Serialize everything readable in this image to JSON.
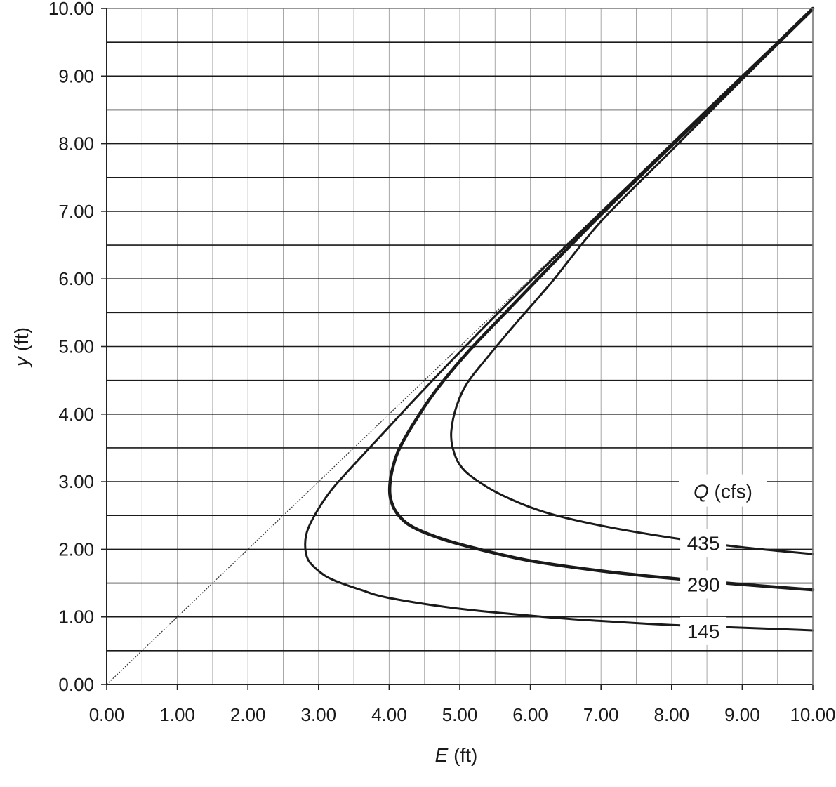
{
  "chart_data": {
    "type": "line",
    "title": "",
    "xlabel": {
      "var": "E",
      "unit": " (ft)"
    },
    "ylabel": {
      "var": "y",
      "unit": " (ft)"
    },
    "xlim": [
      0,
      10
    ],
    "ylim": [
      0,
      10
    ],
    "x_ticks": [
      "0.00",
      "1.00",
      "2.00",
      "3.00",
      "4.00",
      "5.00",
      "6.00",
      "7.00",
      "8.00",
      "9.00",
      "10.00"
    ],
    "y_ticks": [
      "0.00",
      "1.00",
      "2.00",
      "3.00",
      "4.00",
      "5.00",
      "6.00",
      "7.00",
      "8.00",
      "9.00",
      "10.00"
    ],
    "grid": true,
    "legend": {
      "var": "Q",
      "unit": " (cfs)"
    },
    "reference_line": {
      "style": "dotted",
      "points": [
        [
          0,
          0
        ],
        [
          10,
          10
        ]
      ]
    },
    "series": [
      {
        "name": "145",
        "points": [
          [
            10.0,
            0.8
          ],
          [
            9.0,
            0.84
          ],
          [
            8.0,
            0.88
          ],
          [
            7.0,
            0.94
          ],
          [
            6.2,
            1.0
          ],
          [
            5.0,
            1.12
          ],
          [
            4.0,
            1.28
          ],
          [
            3.6,
            1.4
          ],
          [
            3.2,
            1.55
          ],
          [
            3.0,
            1.68
          ],
          [
            2.85,
            1.85
          ],
          [
            2.81,
            2.07
          ],
          [
            2.85,
            2.3
          ],
          [
            3.0,
            2.6
          ],
          [
            3.2,
            2.9
          ],
          [
            3.5,
            3.25
          ],
          [
            3.9,
            3.7
          ],
          [
            4.3,
            4.15
          ],
          [
            4.8,
            4.7
          ],
          [
            5.5,
            5.45
          ],
          [
            6.5,
            6.48
          ],
          [
            7.5,
            7.49
          ],
          [
            8.5,
            8.5
          ],
          [
            10.0,
            10.0
          ]
        ]
      },
      {
        "name": "290",
        "points": [
          [
            10.0,
            1.4
          ],
          [
            9.0,
            1.48
          ],
          [
            8.0,
            1.57
          ],
          [
            7.0,
            1.68
          ],
          [
            6.0,
            1.83
          ],
          [
            5.2,
            2.02
          ],
          [
            4.7,
            2.17
          ],
          [
            4.3,
            2.35
          ],
          [
            4.1,
            2.55
          ],
          [
            4.02,
            2.75
          ],
          [
            4.01,
            2.95
          ],
          [
            4.05,
            3.2
          ],
          [
            4.15,
            3.5
          ],
          [
            4.4,
            3.95
          ],
          [
            4.7,
            4.4
          ],
          [
            5.1,
            4.9
          ],
          [
            5.6,
            5.45
          ],
          [
            6.2,
            6.1
          ],
          [
            7.0,
            6.95
          ],
          [
            8.0,
            7.97
          ],
          [
            9.0,
            8.98
          ],
          [
            10.0,
            10.0
          ]
        ]
      },
      {
        "name": "435",
        "points": [
          [
            10.0,
            1.93
          ],
          [
            9.0,
            2.03
          ],
          [
            8.0,
            2.17
          ],
          [
            7.0,
            2.35
          ],
          [
            6.2,
            2.55
          ],
          [
            5.6,
            2.8
          ],
          [
            5.2,
            3.05
          ],
          [
            5.0,
            3.25
          ],
          [
            4.9,
            3.5
          ],
          [
            4.88,
            3.75
          ],
          [
            4.95,
            4.1
          ],
          [
            5.1,
            4.45
          ],
          [
            5.4,
            4.85
          ],
          [
            5.8,
            5.35
          ],
          [
            6.3,
            5.95
          ],
          [
            7.0,
            6.85
          ],
          [
            8.0,
            7.9
          ],
          [
            9.0,
            8.95
          ],
          [
            10.0,
            9.98
          ]
        ]
      }
    ],
    "series_label_positions": [
      {
        "name": "145",
        "x": 8.45,
        "y": 0.79
      },
      {
        "name": "290",
        "x": 8.45,
        "y": 1.48
      },
      {
        "name": "435",
        "x": 8.45,
        "y": 2.09
      }
    ],
    "legend_position": {
      "x": 8.25,
      "y": 2.86
    }
  }
}
